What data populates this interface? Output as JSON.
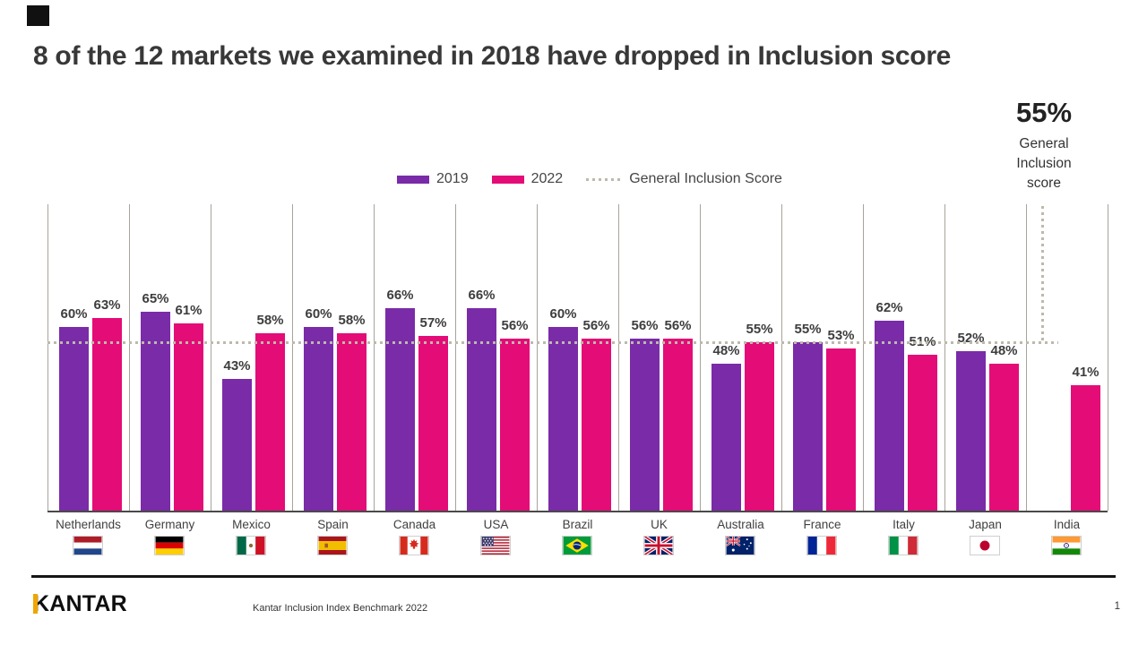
{
  "slide": {
    "title": "8 of the 12 markets we examined in 2018 have dropped in Inclusion score"
  },
  "legend": {
    "item_2019": "2019",
    "item_2022": "2022",
    "item_reference": "General Inclusion Score"
  },
  "general_score": {
    "value": "55%",
    "caption": "General Inclusion score"
  },
  "chart_data": {
    "type": "bar",
    "title": "8 of the 12 markets we examined in 2018 have dropped in Inclusion score",
    "categories": [
      "Netherlands",
      "Germany",
      "Mexico",
      "Spain",
      "Canada",
      "USA",
      "Brazil",
      "UK",
      "Australia",
      "France",
      "Italy",
      "Japan",
      "India"
    ],
    "flag_ids": [
      "nl",
      "de",
      "mx",
      "es",
      "ca",
      "us",
      "br",
      "uk",
      "au",
      "fr",
      "it",
      "jp",
      "in"
    ],
    "series": [
      {
        "name": "2019",
        "color": "#7a2ba8",
        "values": [
          60,
          65,
          43,
          60,
          66,
          66,
          60,
          56,
          48,
          55,
          62,
          52,
          null
        ]
      },
      {
        "name": "2022",
        "color": "#e40c77",
        "values": [
          63,
          61,
          58,
          58,
          57,
          56,
          56,
          56,
          55,
          53,
          51,
          48,
          41
        ]
      }
    ],
    "value_suffix": "%",
    "ylim": [
      0,
      100
    ],
    "reference_line": {
      "value": 55,
      "label": "General Inclusion Score",
      "style": "dotted",
      "color": "#bdb9ac"
    },
    "legend_position": "top",
    "grid": "vertical-category-separators"
  },
  "colors": {
    "series_2019": "#7a2ba8",
    "series_2022": "#e40c77",
    "reference_dotted": "#bdb9ac",
    "separator": "#a7a49c",
    "axis_line": "#4a4a4a",
    "brand_accent": "#f0a500"
  },
  "footer": {
    "brand": "KANTAR",
    "source": "Kantar Inclusion Index Benchmark 2022",
    "page": "1"
  }
}
